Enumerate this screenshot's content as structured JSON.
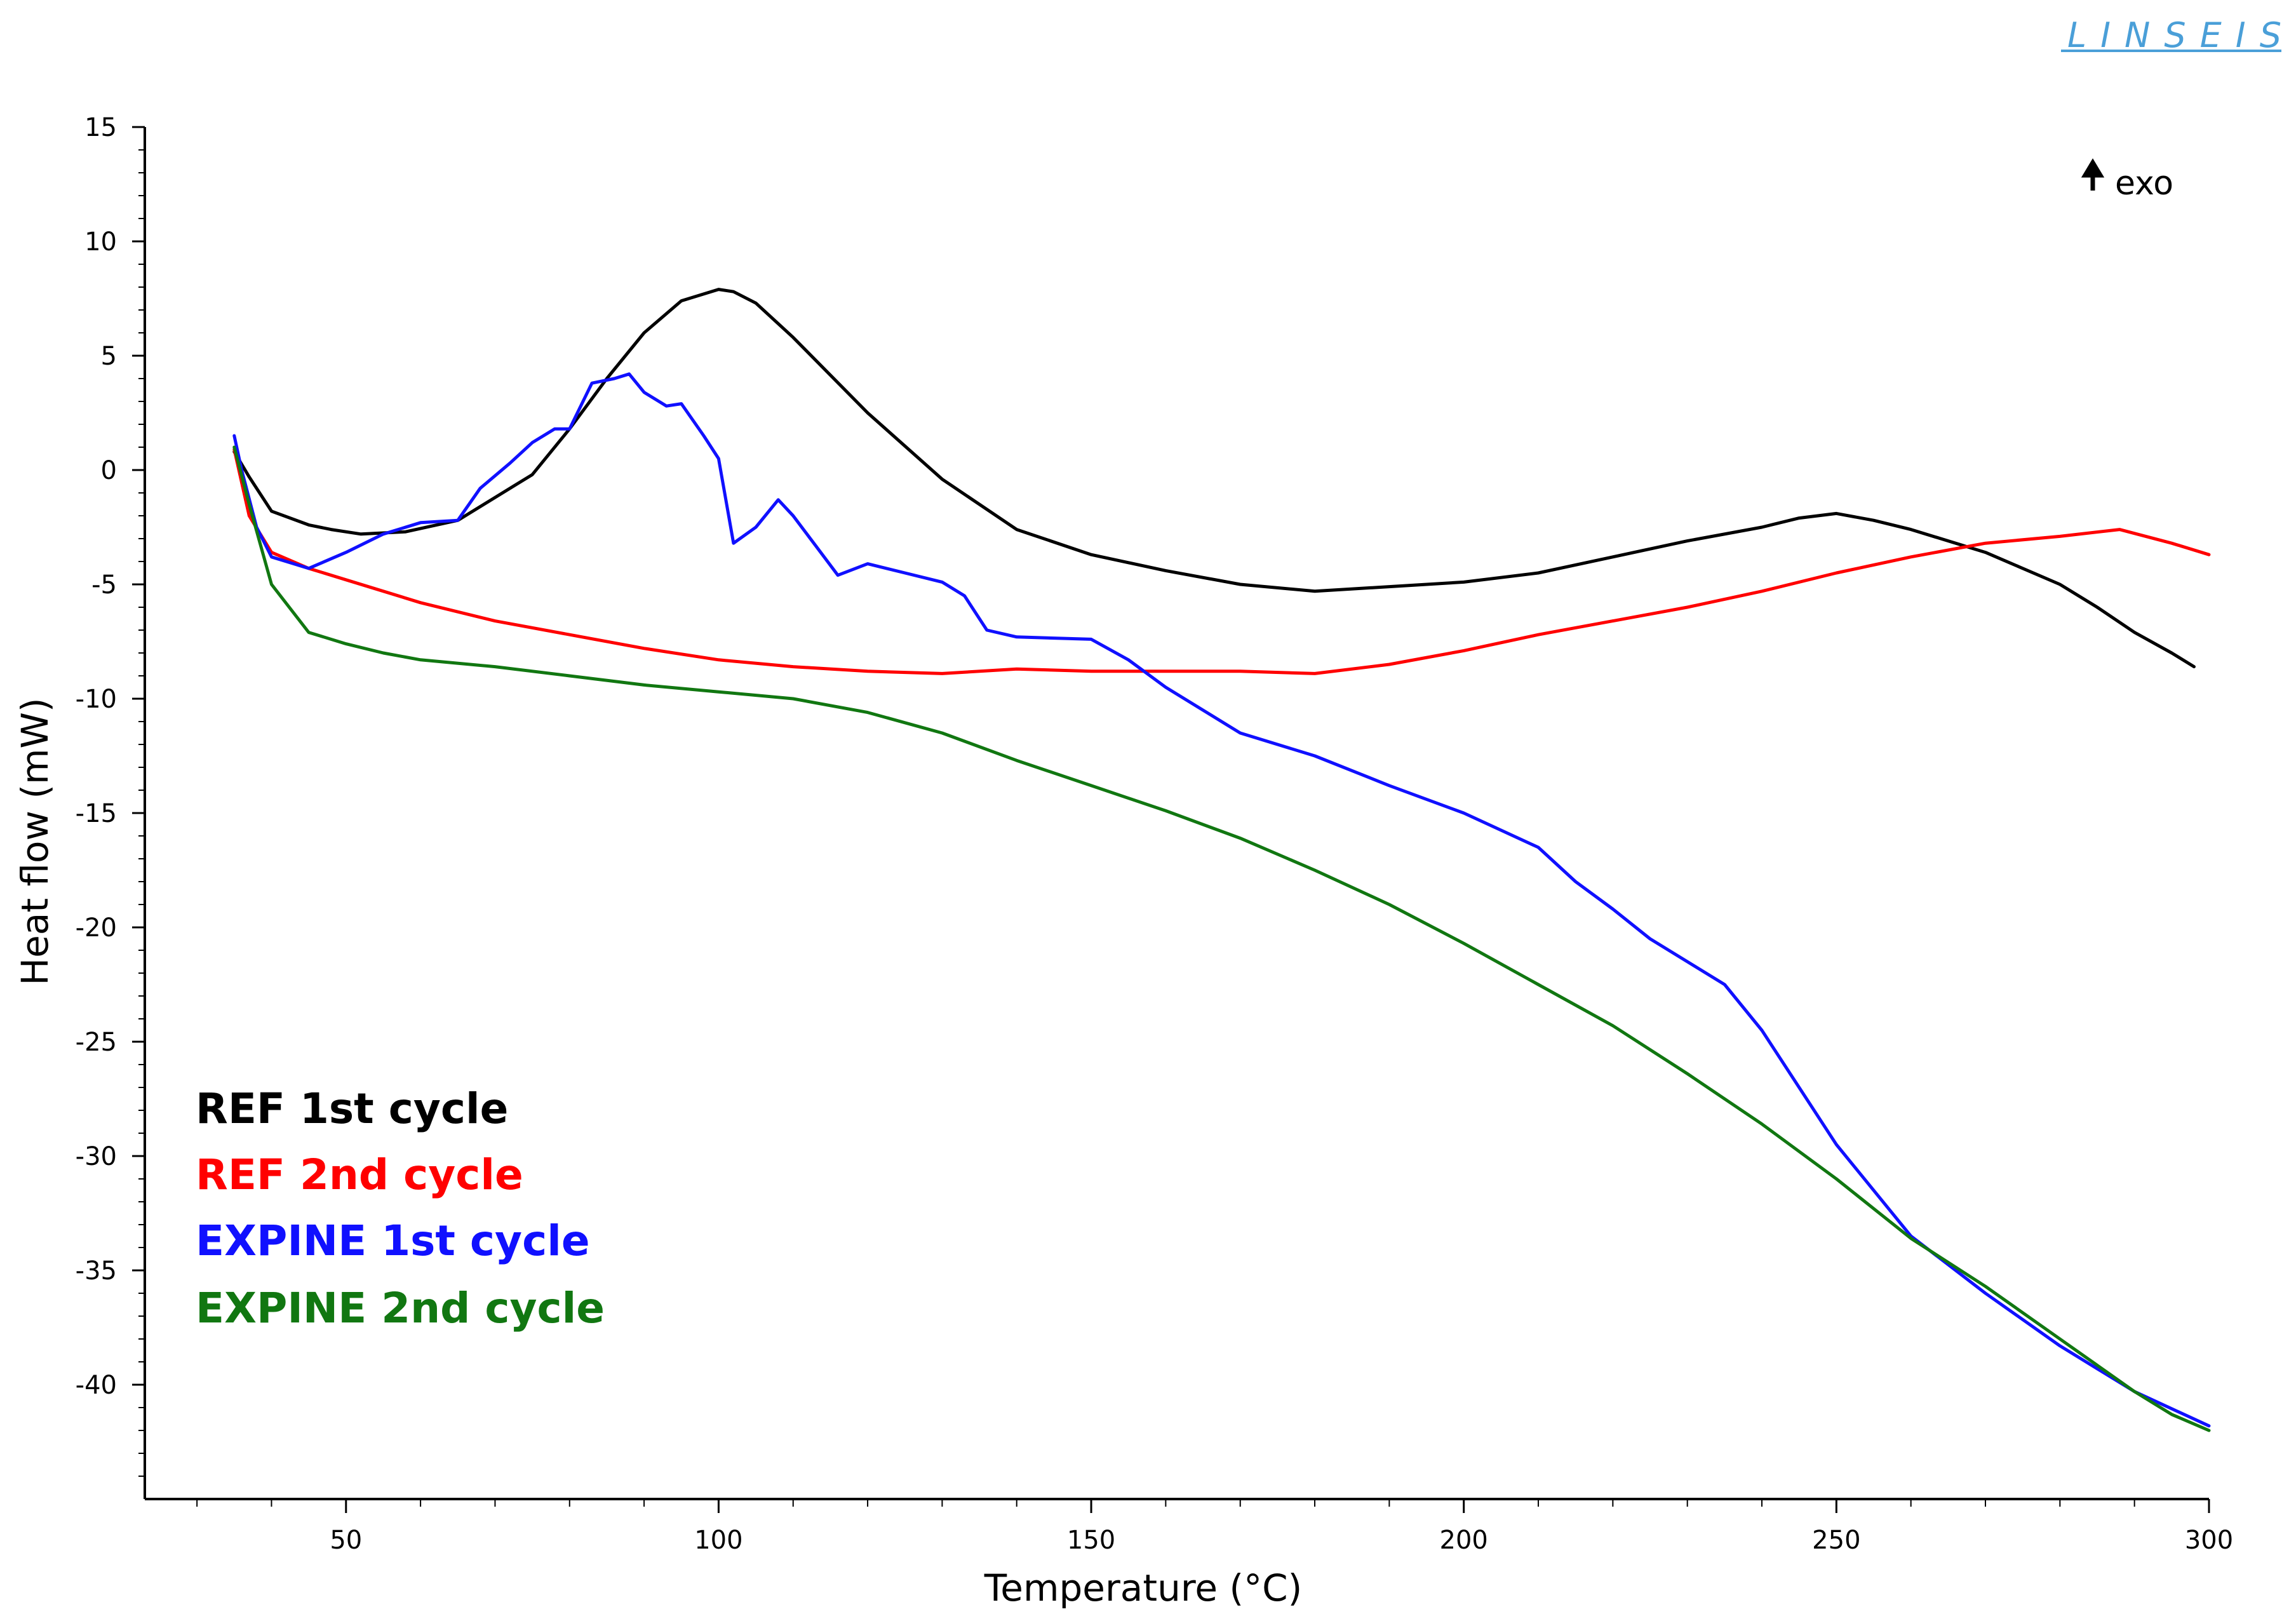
{
  "brand": {
    "logo_text": "LINSEIS",
    "color": "#4a9fd8"
  },
  "exo_indicator": {
    "label": "exo",
    "icon": "up-arrow-icon"
  },
  "chart_data": {
    "type": "line",
    "title": "",
    "xlabel": "Temperature (°C)",
    "ylabel": "Heat flow (mW)",
    "xlim": [
      23,
      300
    ],
    "ylim": [
      -45,
      15
    ],
    "x_ticks": [
      50,
      100,
      150,
      200,
      250,
      300
    ],
    "y_ticks": [
      15,
      10,
      5,
      0,
      -5,
      -10,
      -15,
      -20,
      -25,
      -30,
      -35,
      -40
    ],
    "grid": false,
    "legend_position": "bottom-left",
    "series": [
      {
        "name": "REF 1st cycle",
        "color": "#000000",
        "x": [
          35,
          37,
          40,
          45,
          48,
          52,
          58,
          65,
          70,
          75,
          80,
          85,
          90,
          95,
          100,
          102,
          105,
          110,
          120,
          130,
          140,
          150,
          160,
          170,
          180,
          190,
          200,
          210,
          220,
          230,
          240,
          245,
          250,
          255,
          260,
          270,
          280,
          285,
          290,
          295,
          298
        ],
        "y": [
          0.8,
          -0.3,
          -1.8,
          -2.4,
          -2.6,
          -2.8,
          -2.7,
          -2.2,
          -1.2,
          -0.2,
          1.8,
          4.0,
          6.0,
          7.4,
          7.9,
          7.8,
          7.3,
          5.8,
          2.5,
          -0.4,
          -2.6,
          -3.7,
          -4.4,
          -5.0,
          -5.3,
          -5.1,
          -4.9,
          -4.5,
          -3.8,
          -3.1,
          -2.5,
          -2.1,
          -1.9,
          -2.2,
          -2.6,
          -3.6,
          -5.0,
          -6.0,
          -7.1,
          -8.0,
          -8.6
        ]
      },
      {
        "name": "REF 2nd cycle",
        "color": "#ff0000",
        "x": [
          35,
          37,
          40,
          45,
          50,
          60,
          70,
          80,
          90,
          100,
          110,
          120,
          130,
          140,
          150,
          160,
          170,
          180,
          190,
          200,
          210,
          220,
          230,
          240,
          250,
          260,
          270,
          280,
          288,
          295,
          300
        ],
        "y": [
          0.9,
          -2.0,
          -3.6,
          -4.3,
          -4.8,
          -5.8,
          -6.6,
          -7.2,
          -7.8,
          -8.3,
          -8.6,
          -8.8,
          -8.9,
          -8.7,
          -8.8,
          -8.8,
          -8.8,
          -8.9,
          -8.5,
          -7.9,
          -7.2,
          -6.6,
          -6.0,
          -5.3,
          -4.5,
          -3.8,
          -3.2,
          -2.9,
          -2.6,
          -3.2,
          -3.7
        ]
      },
      {
        "name": "EXPINE 1st cycle",
        "color": "#1010ff",
        "x": [
          35,
          36,
          38,
          40,
          45,
          50,
          55,
          60,
          65,
          68,
          72,
          75,
          78,
          80,
          83,
          86,
          88,
          90,
          93,
          95,
          98,
          100,
          102,
          105,
          108,
          110,
          113,
          116,
          120,
          125,
          130,
          133,
          136,
          140,
          150,
          155,
          160,
          170,
          180,
          190,
          200,
          210,
          215,
          220,
          225,
          230,
          235,
          240,
          245,
          250,
          260,
          270,
          280,
          290,
          300
        ],
        "y": [
          1.5,
          0.0,
          -2.5,
          -3.8,
          -4.3,
          -3.6,
          -2.8,
          -2.3,
          -2.2,
          -0.8,
          0.3,
          1.2,
          1.8,
          1.8,
          3.8,
          4.0,
          4.2,
          3.4,
          2.8,
          2.9,
          1.5,
          0.5,
          -3.2,
          -2.5,
          -1.3,
          -2.0,
          -3.3,
          -4.6,
          -4.1,
          -4.5,
          -4.9,
          -5.5,
          -7.0,
          -7.3,
          -7.4,
          -8.3,
          -9.5,
          -11.5,
          -12.5,
          -13.8,
          -15.0,
          -16.5,
          -18.0,
          -19.2,
          -20.5,
          -21.5,
          -22.5,
          -24.5,
          -27.0,
          -29.5,
          -33.5,
          -36.0,
          -38.3,
          -40.3,
          -41.8
        ]
      },
      {
        "name": "EXPINE 2nd cycle",
        "color": "#117711",
        "x": [
          35,
          37,
          40,
          45,
          50,
          55,
          60,
          70,
          80,
          90,
          100,
          110,
          120,
          130,
          140,
          150,
          160,
          170,
          180,
          190,
          200,
          210,
          220,
          230,
          240,
          250,
          260,
          270,
          280,
          290,
          295,
          300
        ],
        "y": [
          1.0,
          -1.5,
          -5.0,
          -7.1,
          -7.6,
          -8.0,
          -8.3,
          -8.6,
          -9.0,
          -9.4,
          -9.7,
          -10.0,
          -10.6,
          -11.5,
          -12.7,
          -13.8,
          -14.9,
          -16.1,
          -17.5,
          -19.0,
          -20.7,
          -22.5,
          -24.3,
          -26.4,
          -28.6,
          -31.0,
          -33.6,
          -35.7,
          -38.0,
          -40.3,
          -41.3,
          -42.0
        ]
      }
    ]
  }
}
